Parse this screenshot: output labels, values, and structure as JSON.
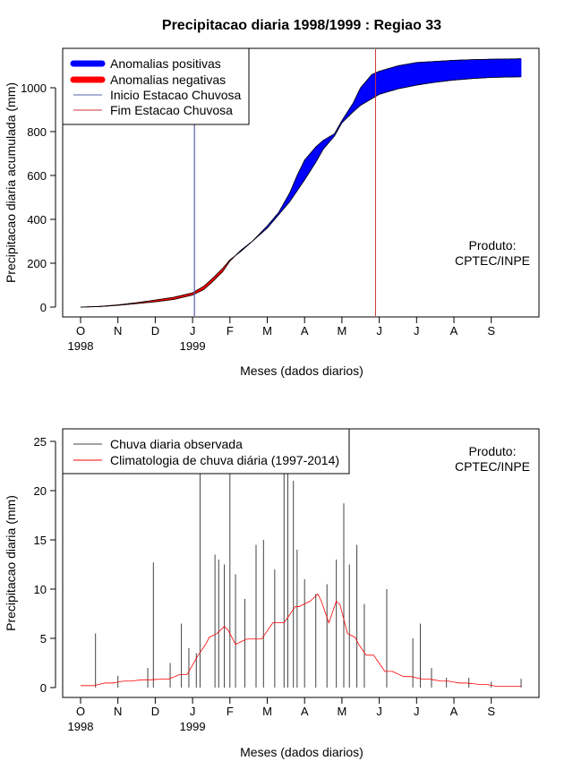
{
  "chart_data": [
    {
      "type": "area",
      "title": "Precipitacao diaria 1998/1999 : Regiao 33",
      "ylabel": "Precipitacao diaria acumulada (mm)",
      "xlabel": "Meses (dados diarios)",
      "ylim": [
        0,
        1150
      ],
      "yticks": [
        0,
        200,
        400,
        600,
        800,
        1000
      ],
      "month_ticks": [
        "O",
        "N",
        "D",
        "J",
        "F",
        "M",
        "A",
        "M",
        "J",
        "J",
        "A",
        "S"
      ],
      "year_labels": [
        {
          "month_index": 0,
          "text": "1998"
        },
        {
          "month_index": 3,
          "text": "1999"
        }
      ],
      "legend": [
        {
          "label": "Anomalias positivas",
          "color": "#0000ff",
          "style": "thick"
        },
        {
          "label": "Anomalias negativas",
          "color": "#ff0000",
          "style": "thick"
        },
        {
          "label": "Inicio Estacao Chuvosa",
          "color": "#5560aa",
          "style": "line"
        },
        {
          "label": "Fim Estacao Chuvosa",
          "color": "#cc3333",
          "style": "line"
        }
      ],
      "annotation": [
        "Produto:",
        "CPTEC/INPE"
      ],
      "rainy_season_start_month": 3.05,
      "rainy_season_end_month": 7.9,
      "observed_points": [
        [
          0,
          0
        ],
        [
          0.5,
          2
        ],
        [
          1,
          8
        ],
        [
          1.5,
          16
        ],
        [
          2,
          24
        ],
        [
          2.5,
          35
        ],
        [
          3,
          55
        ],
        [
          3.3,
          80
        ],
        [
          3.5,
          110
        ],
        [
          3.8,
          160
        ],
        [
          4,
          210
        ],
        [
          4.3,
          260
        ],
        [
          4.6,
          300
        ],
        [
          5,
          370
        ],
        [
          5.3,
          430
        ],
        [
          5.6,
          520
        ],
        [
          5.8,
          600
        ],
        [
          6,
          670
        ],
        [
          6.3,
          730
        ],
        [
          6.5,
          760
        ],
        [
          6.8,
          790
        ],
        [
          7,
          850
        ],
        [
          7.3,
          930
        ],
        [
          7.5,
          1000
        ],
        [
          7.8,
          1060
        ],
        [
          8,
          1075
        ],
        [
          8.5,
          1100
        ],
        [
          9,
          1115
        ],
        [
          9.5,
          1120
        ],
        [
          10,
          1125
        ],
        [
          10.5,
          1128
        ],
        [
          11,
          1130
        ],
        [
          11.8,
          1132
        ]
      ],
      "climatology_points": [
        [
          0,
          0
        ],
        [
          0.5,
          3
        ],
        [
          1,
          10
        ],
        [
          1.5,
          20
        ],
        [
          2,
          32
        ],
        [
          2.5,
          45
        ],
        [
          3,
          65
        ],
        [
          3.3,
          95
        ],
        [
          3.5,
          125
        ],
        [
          3.8,
          175
        ],
        [
          4,
          215
        ],
        [
          4.3,
          255
        ],
        [
          4.6,
          300
        ],
        [
          5,
          360
        ],
        [
          5.3,
          420
        ],
        [
          5.6,
          480
        ],
        [
          5.8,
          530
        ],
        [
          6,
          580
        ],
        [
          6.3,
          660
        ],
        [
          6.5,
          720
        ],
        [
          6.8,
          780
        ],
        [
          7,
          840
        ],
        [
          7.3,
          890
        ],
        [
          7.5,
          920
        ],
        [
          7.8,
          950
        ],
        [
          8,
          970
        ],
        [
          8.5,
          995
        ],
        [
          9,
          1012
        ],
        [
          9.5,
          1025
        ],
        [
          10,
          1035
        ],
        [
          10.5,
          1042
        ],
        [
          11,
          1047
        ],
        [
          11.8,
          1050
        ]
      ]
    },
    {
      "type": "bar",
      "ylabel": "Precipitacao diaria (mm)",
      "xlabel": "Meses (dados diarios)",
      "ylim": [
        0,
        26
      ],
      "yticks": [
        0,
        5,
        10,
        15,
        20,
        25
      ],
      "month_ticks": [
        "O",
        "N",
        "D",
        "J",
        "F",
        "M",
        "A",
        "M",
        "J",
        "J",
        "A",
        "S"
      ],
      "year_labels": [
        {
          "month_index": 0,
          "text": "1998"
        },
        {
          "month_index": 3,
          "text": "1999"
        }
      ],
      "legend": [
        {
          "label": "Chuva diaria observada",
          "color": "#444444",
          "style": "line"
        },
        {
          "label": "Climatologia de chuva diária (1997-2014)",
          "color": "#ff0000",
          "style": "line"
        }
      ],
      "annotation": [
        "Produto:",
        "CPTEC/INPE"
      ],
      "observed_daily": [
        {
          "month": 0.4,
          "value": 5.5
        },
        {
          "month": 1.0,
          "value": 1.2
        },
        {
          "month": 1.8,
          "value": 2.0
        },
        {
          "month": 1.95,
          "value": 12.7
        },
        {
          "month": 2.4,
          "value": 2.5
        },
        {
          "month": 2.7,
          "value": 6.5
        },
        {
          "month": 2.9,
          "value": 4.0
        },
        {
          "month": 3.1,
          "value": 3.5
        },
        {
          "month": 3.2,
          "value": 22.0
        },
        {
          "month": 3.6,
          "value": 13.5
        },
        {
          "month": 3.7,
          "value": 13.0
        },
        {
          "month": 3.85,
          "value": 12.5
        },
        {
          "month": 4.0,
          "value": 22.0
        },
        {
          "month": 4.15,
          "value": 11.5
        },
        {
          "month": 4.4,
          "value": 9.0
        },
        {
          "month": 4.7,
          "value": 14.5
        },
        {
          "month": 4.9,
          "value": 15.0
        },
        {
          "month": 5.2,
          "value": 12.0
        },
        {
          "month": 5.45,
          "value": 22.0
        },
        {
          "month": 5.55,
          "value": 25.0
        },
        {
          "month": 5.7,
          "value": 21.0
        },
        {
          "month": 5.8,
          "value": 14.0
        },
        {
          "month": 6.0,
          "value": 11.0
        },
        {
          "month": 6.3,
          "value": 9.5
        },
        {
          "month": 6.6,
          "value": 10.5
        },
        {
          "month": 6.85,
          "value": 13.0
        },
        {
          "month": 7.05,
          "value": 18.7
        },
        {
          "month": 7.2,
          "value": 12.5
        },
        {
          "month": 7.4,
          "value": 14.5
        },
        {
          "month": 7.6,
          "value": 8.5
        },
        {
          "month": 8.2,
          "value": 10.0
        },
        {
          "month": 8.9,
          "value": 5.0
        },
        {
          "month": 9.1,
          "value": 6.5
        },
        {
          "month": 9.4,
          "value": 2.0
        },
        {
          "month": 9.8,
          "value": 1.0
        },
        {
          "month": 10.4,
          "value": 1.0
        },
        {
          "month": 11.0,
          "value": 0.6
        },
        {
          "month": 11.8,
          "value": 0.9
        }
      ]
    }
  ]
}
